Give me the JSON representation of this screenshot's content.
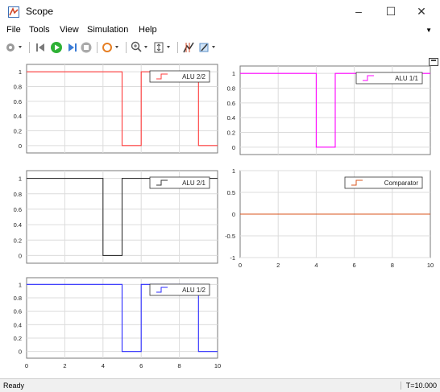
{
  "window": {
    "title": "Scope",
    "controls": [
      "–",
      "☐",
      "✕"
    ]
  },
  "menubar": [
    "File",
    "Tools",
    "View",
    "Simulation",
    "Help"
  ],
  "toolbar": {
    "icons": [
      "gear-icon",
      "back-icon",
      "run-icon",
      "step-icon",
      "stop-icon",
      "highlight-icon",
      "zoom-in-icon",
      "scale-icon",
      "cursor-icon",
      "style-icon"
    ]
  },
  "status": {
    "left": "Ready",
    "right": "T=10.000"
  },
  "colors": {
    "alu22": "#ff3b3b",
    "alu11": "#ff00ff",
    "alu21": "#333333",
    "comparator": "#d9541e",
    "alu12": "#2b2bff"
  },
  "chart_data": [
    {
      "type": "line",
      "legend": "ALU 2/2",
      "legend_placement": "top-right",
      "xlim": [
        0,
        10
      ],
      "ylim": [
        -0.1,
        1.1
      ],
      "yticks": [
        "1",
        "0.8",
        "0.6",
        "0.4",
        "0.2",
        "0"
      ],
      "xticks": [],
      "grid": true,
      "series": [
        {
          "name": "ALU 2/2",
          "color": "#ff3b3b",
          "x": [
            0,
            5,
            5,
            6,
            6,
            9,
            9,
            10
          ],
          "y": [
            1,
            1,
            0,
            0,
            1,
            1,
            0,
            0
          ]
        }
      ]
    },
    {
      "type": "line",
      "legend": "ALU 1/1",
      "legend_placement": "top-right",
      "xlim": [
        0,
        10
      ],
      "ylim": [
        -0.1,
        1.1
      ],
      "yticks": [
        "1",
        "0.8",
        "0.6",
        "0.4",
        "0.2",
        "0"
      ],
      "xticks": [],
      "grid": true,
      "series": [
        {
          "name": "ALU 1/1",
          "color": "#ff00ff",
          "x": [
            0,
            4,
            4,
            5,
            5,
            10
          ],
          "y": [
            1,
            1,
            0,
            0,
            1,
            1
          ]
        }
      ]
    },
    {
      "type": "line",
      "legend": "ALU 2/1",
      "legend_placement": "top-right",
      "xlim": [
        0,
        10
      ],
      "ylim": [
        -0.1,
        1.1
      ],
      "yticks": [
        "1",
        "0.8",
        "0.6",
        "0.4",
        "0.2",
        "0"
      ],
      "xticks": [],
      "grid": true,
      "series": [
        {
          "name": "ALU 2/1",
          "color": "#333333",
          "x": [
            0,
            4,
            4,
            5,
            5,
            10
          ],
          "y": [
            1,
            1,
            0,
            0,
            1,
            1
          ]
        }
      ]
    },
    {
      "type": "line",
      "legend": "Comparator",
      "legend_placement": "top-right",
      "xlim": [
        0,
        10
      ],
      "ylim": [
        -1,
        1
      ],
      "yticks": [
        "1",
        "0.5",
        "0",
        "-0.5",
        "-1"
      ],
      "xticks": [
        "0",
        "2",
        "4",
        "6",
        "8",
        "10"
      ],
      "grid": true,
      "series": [
        {
          "name": "Comparator",
          "color": "#d9541e",
          "x": [
            0,
            10
          ],
          "y": [
            0,
            0
          ]
        }
      ]
    },
    {
      "type": "line",
      "legend": "ALU 1/2",
      "legend_placement": "top-right",
      "xlim": [
        0,
        10
      ],
      "ylim": [
        -0.1,
        1.1
      ],
      "yticks": [
        "1",
        "0.8",
        "0.6",
        "0.4",
        "0.2",
        "0"
      ],
      "xticks": [
        "0",
        "2",
        "4",
        "6",
        "8",
        "10"
      ],
      "grid": true,
      "series": [
        {
          "name": "ALU 1/2",
          "color": "#2b2bff",
          "x": [
            0,
            5,
            5,
            6,
            6,
            9,
            9,
            10
          ],
          "y": [
            1,
            1,
            0,
            0,
            1,
            1,
            0,
            0
          ]
        }
      ]
    }
  ]
}
